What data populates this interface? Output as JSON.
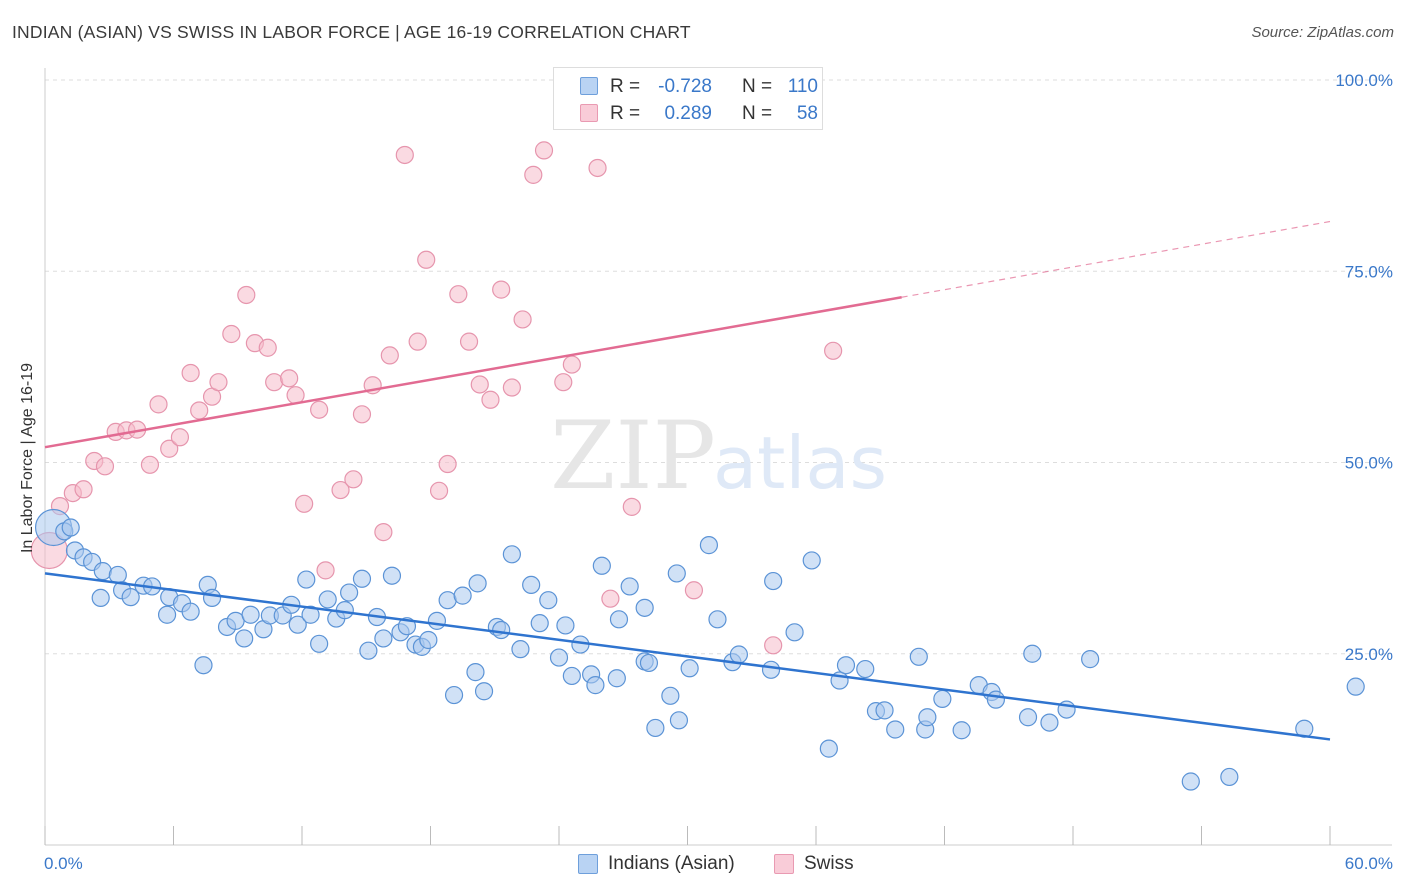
{
  "title": "INDIAN (ASIAN) VS SWISS IN LABOR FORCE | AGE 16-19 CORRELATION CHART",
  "source": "Source: ZipAtlas.com",
  "watermark": {
    "zip": "ZIP",
    "atlas": "atlas"
  },
  "colors": {
    "blue_fill": "#a9c8ef",
    "blue_stroke": "#5b93d6",
    "blue_line": "#2f74cf",
    "pink_fill": "#f6bccb",
    "pink_stroke": "#e695ad",
    "pink_line": "#e26b92",
    "axis_text": "#3a78c9",
    "grid": "#dddddd"
  },
  "stats": {
    "r_label": "R =",
    "n_label": "N =",
    "rows": [
      {
        "series": "Indians (Asian)",
        "r": "-0.728",
        "n": "110"
      },
      {
        "series": "Swiss",
        "r": "0.289",
        "n": "58"
      }
    ]
  },
  "legend": {
    "items": [
      {
        "label": "Indians (Asian)"
      },
      {
        "label": "Swiss"
      }
    ]
  },
  "chart_data": {
    "type": "scatter",
    "title": "INDIAN (ASIAN) VS SWISS IN LABOR FORCE | AGE 16-19 CORRELATION CHART",
    "xlabel": "",
    "ylabel": "In Labor Force | Age 16-19",
    "xlim": [
      0,
      60
    ],
    "ylim": [
      0,
      100
    ],
    "x_tick_labels": [
      "0.0%",
      "60.0%"
    ],
    "y_ticks": [
      25,
      50,
      75,
      100
    ],
    "y_tick_labels": [
      "25.0%",
      "50.0%",
      "75.0%",
      "100.0%"
    ],
    "grid": true,
    "legend_position": "bottom-center",
    "series": [
      {
        "name": "Indians (Asian)",
        "points": [
          [
            0.4,
            41.5
          ],
          [
            0.9,
            41.0
          ],
          [
            1.2,
            41.5
          ],
          [
            1.4,
            38.5
          ],
          [
            1.8,
            37.6
          ],
          [
            2.2,
            37.0
          ],
          [
            2.7,
            35.8
          ],
          [
            3.4,
            35.3
          ],
          [
            2.6,
            32.3
          ],
          [
            3.6,
            33.3
          ],
          [
            4.0,
            32.4
          ],
          [
            4.6,
            33.9
          ],
          [
            5.0,
            33.8
          ],
          [
            5.8,
            32.4
          ],
          [
            5.7,
            30.1
          ],
          [
            6.4,
            31.6
          ],
          [
            6.8,
            30.5
          ],
          [
            7.6,
            34.0
          ],
          [
            7.8,
            32.3
          ],
          [
            7.4,
            23.5
          ],
          [
            8.5,
            28.5
          ],
          [
            8.9,
            29.3
          ],
          [
            9.3,
            27.0
          ],
          [
            9.6,
            30.1
          ],
          [
            10.2,
            28.2
          ],
          [
            10.5,
            30.0
          ],
          [
            11.1,
            30.0
          ],
          [
            11.5,
            31.4
          ],
          [
            11.8,
            28.8
          ],
          [
            12.4,
            30.1
          ],
          [
            12.2,
            34.7
          ],
          [
            12.8,
            26.3
          ],
          [
            13.2,
            32.1
          ],
          [
            13.6,
            29.6
          ],
          [
            14.0,
            30.7
          ],
          [
            14.2,
            33.0
          ],
          [
            14.8,
            34.8
          ],
          [
            15.1,
            25.4
          ],
          [
            15.5,
            29.8
          ],
          [
            15.8,
            27.0
          ],
          [
            16.2,
            35.2
          ],
          [
            16.6,
            27.8
          ],
          [
            16.9,
            28.6
          ],
          [
            17.3,
            26.2
          ],
          [
            17.6,
            25.9
          ],
          [
            17.9,
            26.8
          ],
          [
            18.3,
            29.3
          ],
          [
            18.8,
            32.0
          ],
          [
            19.1,
            19.6
          ],
          [
            19.5,
            32.6
          ],
          [
            20.2,
            34.2
          ],
          [
            20.1,
            22.6
          ],
          [
            20.5,
            20.1
          ],
          [
            21.1,
            28.5
          ],
          [
            21.3,
            28.1
          ],
          [
            21.8,
            38.0
          ],
          [
            22.2,
            25.6
          ],
          [
            22.7,
            34.0
          ],
          [
            23.1,
            29.0
          ],
          [
            23.5,
            32.0
          ],
          [
            24.0,
            24.5
          ],
          [
            24.3,
            28.7
          ],
          [
            24.6,
            22.1
          ],
          [
            25.0,
            26.2
          ],
          [
            25.5,
            22.3
          ],
          [
            25.7,
            20.9
          ],
          [
            26.0,
            36.5
          ],
          [
            26.7,
            21.8
          ],
          [
            26.8,
            29.5
          ],
          [
            27.3,
            33.8
          ],
          [
            28.0,
            31.0
          ],
          [
            28.0,
            24.0
          ],
          [
            28.2,
            23.8
          ],
          [
            28.5,
            15.3
          ],
          [
            29.2,
            19.5
          ],
          [
            29.5,
            35.5
          ],
          [
            29.6,
            16.3
          ],
          [
            30.1,
            23.1
          ],
          [
            31.0,
            39.2
          ],
          [
            31.4,
            29.5
          ],
          [
            32.1,
            23.9
          ],
          [
            32.4,
            24.9
          ],
          [
            33.9,
            22.9
          ],
          [
            34.0,
            34.5
          ],
          [
            35.0,
            27.8
          ],
          [
            35.8,
            37.2
          ],
          [
            36.6,
            12.6
          ],
          [
            37.1,
            21.5
          ],
          [
            37.4,
            23.5
          ],
          [
            38.3,
            23.0
          ],
          [
            38.8,
            17.5
          ],
          [
            39.2,
            17.6
          ],
          [
            39.7,
            15.1
          ],
          [
            40.8,
            24.6
          ],
          [
            41.1,
            15.1
          ],
          [
            41.2,
            16.7
          ],
          [
            41.9,
            19.1
          ],
          [
            42.8,
            15.0
          ],
          [
            43.6,
            20.9
          ],
          [
            44.2,
            20.0
          ],
          [
            44.4,
            19.0
          ],
          [
            45.9,
            16.7
          ],
          [
            46.1,
            25.0
          ],
          [
            46.9,
            16.0
          ],
          [
            47.7,
            17.7
          ],
          [
            48.8,
            24.3
          ],
          [
            53.5,
            8.3
          ],
          [
            55.3,
            8.9
          ],
          [
            58.8,
            15.2
          ],
          [
            61.2,
            20.7
          ]
        ]
      },
      {
        "name": "Swiss",
        "points": [
          [
            0.2,
            38.5
          ],
          [
            0.7,
            44.3
          ],
          [
            1.3,
            46.0
          ],
          [
            1.8,
            46.5
          ],
          [
            2.3,
            50.2
          ],
          [
            2.8,
            49.5
          ],
          [
            3.3,
            54.0
          ],
          [
            3.8,
            54.2
          ],
          [
            4.3,
            54.3
          ],
          [
            4.9,
            49.7
          ],
          [
            5.3,
            57.6
          ],
          [
            5.8,
            51.8
          ],
          [
            6.3,
            53.3
          ],
          [
            6.8,
            61.7
          ],
          [
            7.2,
            56.8
          ],
          [
            7.8,
            58.6
          ],
          [
            8.1,
            60.5
          ],
          [
            8.7,
            66.8
          ],
          [
            9.4,
            71.9
          ],
          [
            9.8,
            65.6
          ],
          [
            10.4,
            65.0
          ],
          [
            10.7,
            60.5
          ],
          [
            11.4,
            61.0
          ],
          [
            11.7,
            58.8
          ],
          [
            12.1,
            44.6
          ],
          [
            12.8,
            56.9
          ],
          [
            13.1,
            35.9
          ],
          [
            13.8,
            46.4
          ],
          [
            14.4,
            47.8
          ],
          [
            14.8,
            56.3
          ],
          [
            15.3,
            60.1
          ],
          [
            15.8,
            40.9
          ],
          [
            16.1,
            64.0
          ],
          [
            16.8,
            90.2
          ],
          [
            17.4,
            65.8
          ],
          [
            17.8,
            76.5
          ],
          [
            18.4,
            46.3
          ],
          [
            18.8,
            49.8
          ],
          [
            19.3,
            72.0
          ],
          [
            19.8,
            65.8
          ],
          [
            20.3,
            60.2
          ],
          [
            20.8,
            58.2
          ],
          [
            21.3,
            72.6
          ],
          [
            21.8,
            59.8
          ],
          [
            22.3,
            68.7
          ],
          [
            22.8,
            87.6
          ],
          [
            23.3,
            90.8
          ],
          [
            24.2,
            60.5
          ],
          [
            24.6,
            62.8
          ],
          [
            25.2,
            100.0
          ],
          [
            25.8,
            88.5
          ],
          [
            26.4,
            32.2
          ],
          [
            26.9,
            100.0
          ],
          [
            27.4,
            44.2
          ],
          [
            27.9,
            100.0
          ],
          [
            30.3,
            33.3
          ],
          [
            34.0,
            26.1
          ],
          [
            36.8,
            64.6
          ]
        ]
      }
    ],
    "trend_lines": [
      {
        "series": "Indians (Asian)",
        "x": [
          0,
          60
        ],
        "y": [
          35.5,
          13.8
        ]
      },
      {
        "series": "Swiss",
        "x": [
          0,
          40
        ],
        "y": [
          52.0,
          71.6
        ],
        "dashed_extension_to": [
          60,
          81.5
        ]
      }
    ]
  }
}
